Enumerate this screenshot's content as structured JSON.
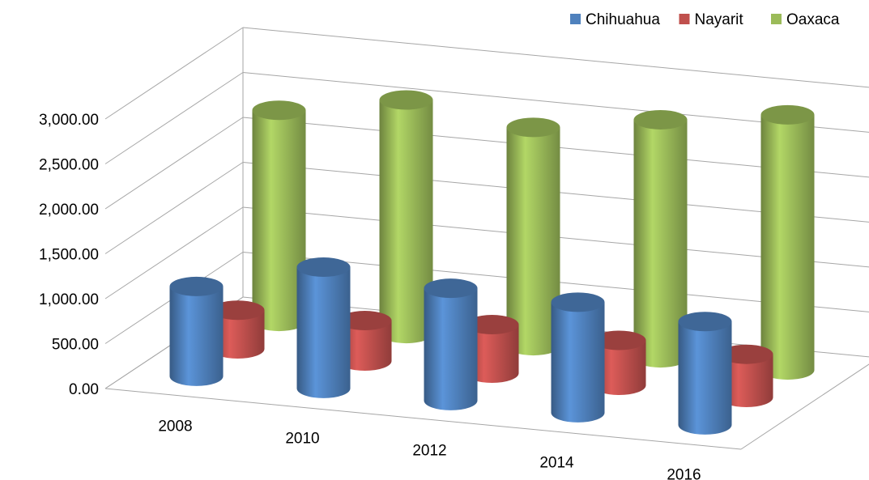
{
  "chart_data": {
    "type": "bar3d-cylinder",
    "categories": [
      "2008",
      "2010",
      "2012",
      "2014",
      "2016"
    ],
    "series": [
      {
        "name": "Chihuahua",
        "color": "#4f81bd",
        "values": [
          1000,
          1350,
          1250,
          1230,
          1150
        ]
      },
      {
        "name": "Nayarit",
        "color": "#c0504d",
        "values": [
          430,
          450,
          540,
          500,
          480
        ]
      },
      {
        "name": "Oaxaca",
        "color": "#9bbb59",
        "values": [
          2350,
          2600,
          2430,
          2650,
          2840
        ]
      }
    ],
    "ylim": [
      0,
      3000
    ],
    "yticks": [
      {
        "value": 0,
        "label": "0.00"
      },
      {
        "value": 500,
        "label": "500.00"
      },
      {
        "value": 1000,
        "label": "1,000.00"
      },
      {
        "value": 1500,
        "label": "1,500.00"
      },
      {
        "value": 2000,
        "label": "2,000.00"
      },
      {
        "value": 2500,
        "label": "2,500.00"
      },
      {
        "value": 3000,
        "label": "3,000.00"
      }
    ],
    "grid": true,
    "legend": "top-right"
  }
}
